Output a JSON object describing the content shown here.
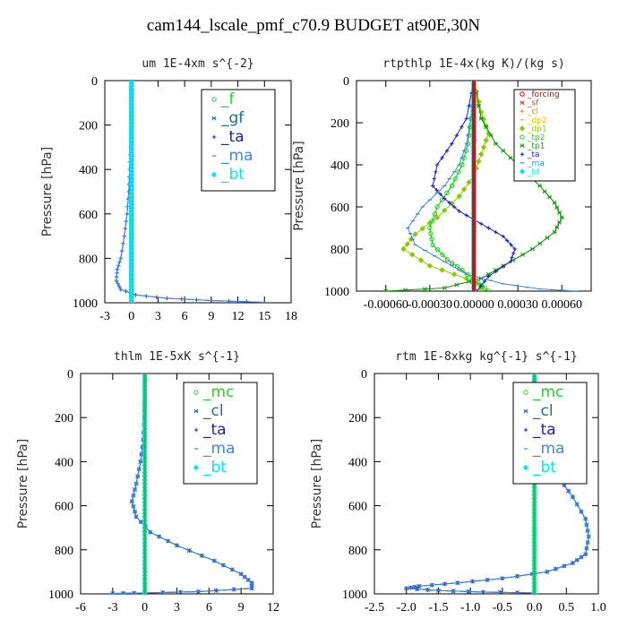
{
  "title": "cam144_lscale_pmf_c70.9  BUDGET at90E,30N",
  "chart_data": [
    {
      "type": "line",
      "title": "um  1E-4xm s^{-2}",
      "ylabel": "Pressure [hPa]",
      "xlim": [
        -3,
        18
      ],
      "ylim": [
        1000,
        0
      ],
      "xticks": [
        "-3",
        "0",
        "3",
        "6",
        "9",
        "12",
        "15",
        "18"
      ],
      "xtick_values": [
        -3,
        0,
        3,
        6,
        9,
        12,
        15,
        18
      ],
      "yticks": [
        "0",
        "200",
        "400",
        "600",
        "800",
        "1000"
      ],
      "legend_position": "top-right",
      "legend_size": "big",
      "series": [
        {
          "name": "_f",
          "color": "#33cc33",
          "marker": "circle",
          "width": 1.2,
          "x": [
            0,
            0,
            0,
            0,
            0,
            0,
            0,
            0,
            0,
            0,
            0
          ],
          "y": [
            0,
            100,
            200,
            300,
            400,
            500,
            600,
            700,
            800,
            900,
            1000
          ]
        },
        {
          "name": "_gf",
          "color": "#1c6ea4",
          "marker": "star",
          "width": 1,
          "x": [
            0,
            0,
            0,
            0,
            0,
            0,
            0,
            0,
            0,
            0,
            0
          ],
          "y": [
            0,
            100,
            200,
            300,
            400,
            500,
            600,
            700,
            800,
            900,
            1000
          ]
        },
        {
          "name": "_ta",
          "color": "#1e1ecc",
          "marker": "plus",
          "width": 1,
          "x": [
            0,
            0,
            -0.05,
            -0.1,
            -0.2,
            -0.3,
            -0.5,
            -0.8,
            -1.2,
            -1.6,
            -1.7,
            -1.2,
            0.5,
            4,
            9,
            15
          ],
          "y": [
            0,
            100,
            200,
            300,
            400,
            500,
            600,
            700,
            800,
            850,
            900,
            940,
            965,
            980,
            990,
            998
          ]
        },
        {
          "name": "_ma",
          "color": "#3a8ae0",
          "marker": "dash",
          "width": 1,
          "x": [
            0,
            0,
            -0.05,
            -0.1,
            -0.2,
            -0.3,
            -0.5,
            -0.8,
            -1.2,
            -1.6,
            -1.7,
            -1.2,
            0.5,
            4,
            9,
            15
          ],
          "y": [
            0,
            100,
            200,
            300,
            400,
            500,
            600,
            700,
            800,
            850,
            900,
            940,
            965,
            980,
            990,
            998
          ]
        },
        {
          "name": "_bt",
          "color": "#00e5ff",
          "marker": "diamond",
          "width": 1.2,
          "x": [
            0,
            0,
            0,
            0,
            0,
            0,
            0,
            0,
            0,
            0,
            0
          ],
          "y": [
            0,
            100,
            200,
            300,
            400,
            500,
            600,
            700,
            800,
            900,
            1000
          ]
        }
      ]
    },
    {
      "type": "line",
      "title": "rtpthlp  1E-4x(kg K)/(kg s)",
      "ylabel": "Pressure [hPa]",
      "xlim": [
        -0.0008,
        0.0008
      ],
      "ylim": [
        1000,
        0
      ],
      "xticks": [
        "-0.00060",
        "-0.00030",
        "0.00000",
        "0.00030",
        "0.00060"
      ],
      "xtick_values": [
        -0.0006,
        -0.0003,
        0.0,
        0.0003,
        0.0006
      ],
      "yticks": [
        "0",
        "200",
        "400",
        "600",
        "800",
        "1000"
      ],
      "legend_position": "top-right",
      "legend_size": "small",
      "series": [
        {
          "name": "_forcing",
          "color": "#d00000",
          "marker": "circle",
          "width": 1.2,
          "x": [
            0,
            0,
            0,
            0,
            0,
            0,
            0,
            0,
            0,
            0,
            0
          ],
          "y": [
            0,
            100,
            200,
            300,
            400,
            500,
            600,
            700,
            800,
            900,
            1000
          ]
        },
        {
          "name": "_sf",
          "color": "#e83030",
          "marker": "star",
          "width": 1,
          "x": [
            0,
            0,
            0,
            0,
            0,
            0,
            0,
            0,
            0,
            0,
            0
          ],
          "y": [
            0,
            100,
            200,
            300,
            400,
            500,
            600,
            700,
            800,
            900,
            1000
          ]
        },
        {
          "name": "_cl",
          "color": "#f08000",
          "marker": "plus",
          "width": 1,
          "x": [
            0,
            0,
            0,
            0,
            0,
            0,
            0,
            0,
            0,
            0,
            0
          ],
          "y": [
            0,
            100,
            200,
            300,
            400,
            500,
            600,
            700,
            800,
            900,
            1000
          ]
        },
        {
          "name": "_dp2",
          "color": "#e8c000",
          "marker": "dash",
          "width": 1,
          "x": [
            0,
            0,
            0,
            0,
            0,
            0,
            0,
            0,
            0,
            0,
            0
          ],
          "y": [
            0,
            100,
            200,
            300,
            400,
            500,
            600,
            700,
            800,
            900,
            1000
          ]
        },
        {
          "name": "_dp1",
          "color": "#88cc00",
          "marker": "diamond",
          "width": 1,
          "x": [
            0,
            5e-05,
            0.0001,
            5e-05,
            0,
            -0.0001,
            -0.00025,
            -0.0004,
            -0.00048,
            -0.0003,
            -5e-05,
            5e-05,
            5e-05
          ],
          "y": [
            0,
            150,
            250,
            350,
            450,
            550,
            650,
            730,
            800,
            880,
            940,
            975,
            1000
          ]
        },
        {
          "name": "_tp2",
          "color": "#22cc22",
          "marker": "circle",
          "width": 1.1,
          "x": [
            0,
            -2e-05,
            -4e-05,
            -8e-05,
            -0.00015,
            -0.00025,
            -0.0003,
            -0.00028,
            -0.00018,
            -8e-05,
            3e-05,
            0.0001
          ],
          "y": [
            0,
            180,
            300,
            400,
            500,
            600,
            700,
            780,
            850,
            900,
            960,
            1000
          ]
        },
        {
          "name": "_tp1",
          "color": "#119911",
          "marker": "star",
          "width": 1.1,
          "x": [
            0,
            5e-05,
            0.00015,
            0.0003,
            0.00045,
            0.00055,
            0.0006,
            0.00055,
            0.0004,
            0.0002,
            5e-05,
            -0.0002,
            -0.0006
          ],
          "y": [
            0,
            180,
            300,
            400,
            500,
            580,
            650,
            720,
            800,
            880,
            940,
            985,
            1000
          ]
        },
        {
          "name": "_ta",
          "color": "#1e1ecc",
          "marker": "plus",
          "width": 1,
          "x": [
            0,
            -5e-05,
            -0.00015,
            -0.00025,
            -0.00028,
            -0.0002,
            -0.0001,
            5e-05,
            0.0002,
            0.00028,
            0.00025,
            0.0001,
            2e-05
          ],
          "y": [
            0,
            180,
            300,
            400,
            500,
            560,
            620,
            680,
            740,
            800,
            860,
            930,
            1000
          ]
        },
        {
          "name": "_ma",
          "color": "#3a8ae0",
          "marker": "dash",
          "width": 1,
          "x": [
            0,
            -2e-05,
            -5e-05,
            -0.0001,
            -0.0002,
            -0.00035,
            -0.00045,
            -0.0004,
            -0.0002,
            -5e-05,
            0.0002,
            0.00045,
            0.0007
          ],
          "y": [
            0,
            180,
            300,
            400,
            500,
            600,
            700,
            780,
            860,
            920,
            965,
            990,
            1000
          ]
        },
        {
          "name": "_bt",
          "color": "#00e5ff",
          "marker": "diamond",
          "width": 1,
          "x": [
            0,
            0,
            0,
            0,
            0,
            0,
            0,
            0,
            0,
            0,
            0
          ],
          "y": [
            0,
            100,
            200,
            300,
            400,
            500,
            600,
            700,
            800,
            900,
            1000
          ]
        }
      ]
    },
    {
      "type": "line",
      "title": "thlm  1E-5xK s^{-1}",
      "ylabel": "Pressure [hPa]",
      "xlim": [
        -6,
        12
      ],
      "ylim": [
        1000,
        0
      ],
      "xticks": [
        "-6",
        "-3",
        "0",
        "3",
        "6",
        "9",
        "12"
      ],
      "xtick_values": [
        -6,
        -3,
        0,
        3,
        6,
        9,
        12
      ],
      "yticks": [
        "0",
        "200",
        "400",
        "600",
        "800",
        "1000"
      ],
      "legend_position": "top-right",
      "legend_size": "big",
      "series": [
        {
          "name": "_mc",
          "color": "#33cc33",
          "marker": "circle",
          "width": 1.2,
          "x": [
            0,
            0,
            0,
            0,
            0,
            0,
            0,
            0,
            0,
            0,
            0
          ],
          "y": [
            0,
            100,
            200,
            300,
            400,
            500,
            600,
            700,
            800,
            900,
            1000
          ]
        },
        {
          "name": "_cl",
          "color": "#1c6ea4",
          "marker": "star",
          "width": 1,
          "x": [
            0,
            0,
            -0.05,
            -0.15,
            -0.4,
            -0.8,
            -1.2,
            -0.8,
            0.5,
            3,
            6.5,
            9,
            10,
            10,
            5,
            0,
            -3
          ],
          "y": [
            0,
            100,
            200,
            300,
            400,
            500,
            580,
            650,
            720,
            780,
            850,
            910,
            950,
            975,
            990,
            996,
            998
          ]
        },
        {
          "name": "_ta",
          "color": "#1e1ecc",
          "marker": "plus",
          "width": 1,
          "x": [
            0,
            0,
            -0.05,
            -0.15,
            -0.4,
            -0.8,
            -1.2,
            -0.8,
            0.5,
            3,
            6.5,
            9,
            10,
            10,
            5,
            0,
            -3
          ],
          "y": [
            0,
            100,
            200,
            300,
            400,
            500,
            580,
            650,
            720,
            780,
            850,
            910,
            950,
            975,
            990,
            996,
            998
          ]
        },
        {
          "name": "_ma",
          "color": "#3a8ae0",
          "marker": "dash",
          "width": 1,
          "x": [
            0,
            0,
            -0.05,
            -0.15,
            -0.4,
            -0.8,
            -1.2,
            -0.8,
            0.5,
            3,
            6.5,
            9,
            10,
            10,
            5,
            0,
            -3
          ],
          "y": [
            0,
            100,
            200,
            300,
            400,
            500,
            580,
            650,
            720,
            780,
            850,
            910,
            950,
            975,
            990,
            996,
            998
          ]
        },
        {
          "name": "_bt",
          "color": "#00e5ff",
          "marker": "diamond",
          "width": 1.2,
          "x": [
            0,
            0,
            0,
            0,
            0,
            0,
            0,
            0,
            0,
            0,
            0
          ],
          "y": [
            0,
            100,
            200,
            300,
            400,
            500,
            600,
            700,
            800,
            900,
            1000
          ]
        }
      ]
    },
    {
      "type": "line",
      "title": "rtm  1E-8xkg kg^{-1} s^{-1}",
      "ylabel": "Pressure [hPa]",
      "xlim": [
        -2.5,
        1.0
      ],
      "ylim": [
        1000,
        0
      ],
      "xticks": [
        "-2.5",
        "-2.0",
        "-1.5",
        "-1.0",
        "-0.5",
        "0.0",
        "0.5",
        "1.0"
      ],
      "xtick_values": [
        -2.5,
        -2.0,
        -1.5,
        -1.0,
        -0.5,
        0.0,
        0.5,
        1.0
      ],
      "yticks": [
        "0",
        "200",
        "400",
        "600",
        "800",
        "1000"
      ],
      "legend_position": "top-right",
      "legend_size": "big",
      "series": [
        {
          "name": "_mc",
          "color": "#33cc33",
          "marker": "circle",
          "width": 1.2,
          "x": [
            0,
            0,
            0,
            0,
            0,
            0,
            0,
            0,
            0,
            0,
            0
          ],
          "y": [
            0,
            100,
            200,
            300,
            400,
            500,
            600,
            700,
            800,
            900,
            1000
          ]
        },
        {
          "name": "_cl",
          "color": "#1c6ea4",
          "marker": "star",
          "width": 1,
          "x": [
            0,
            0,
            0.05,
            0.1,
            0.15,
            0.2,
            0.4,
            0.6,
            0.8,
            0.85,
            0.8,
            0.6,
            0.2,
            -0.5,
            -1.2,
            -1.8,
            -2.0,
            -1.5,
            -0.8,
            0
          ],
          "y": [
            0,
            100,
            180,
            240,
            300,
            380,
            480,
            560,
            660,
            740,
            820,
            860,
            900,
            930,
            950,
            965,
            975,
            985,
            992,
            996
          ]
        },
        {
          "name": "_ta",
          "color": "#1e1ecc",
          "marker": "plus",
          "width": 1,
          "x": [
            0,
            0,
            0.05,
            0.1,
            0.15,
            0.2,
            0.4,
            0.6,
            0.8,
            0.85,
            0.8,
            0.6,
            0.2,
            -0.5,
            -1.2,
            -1.8,
            -2.0,
            -1.5,
            -0.8,
            0
          ],
          "y": [
            0,
            100,
            180,
            240,
            300,
            380,
            480,
            560,
            660,
            740,
            820,
            860,
            900,
            930,
            950,
            965,
            975,
            985,
            992,
            996
          ]
        },
        {
          "name": "_ma",
          "color": "#3a8ae0",
          "marker": "dash",
          "width": 1,
          "x": [
            0,
            0,
            0.05,
            0.1,
            0.15,
            0.2,
            0.4,
            0.6,
            0.8,
            0.85,
            0.8,
            0.6,
            0.2,
            -0.5,
            -1.2,
            -1.8,
            -2.0,
            -1.5,
            -0.8,
            0
          ],
          "y": [
            0,
            100,
            180,
            240,
            300,
            380,
            480,
            560,
            660,
            740,
            820,
            860,
            900,
            930,
            950,
            965,
            975,
            985,
            992,
            996
          ]
        },
        {
          "name": "_bt",
          "color": "#00e5ff",
          "marker": "diamond",
          "width": 1.2,
          "x": [
            0,
            0,
            0,
            0,
            0,
            0,
            0,
            0,
            0,
            0,
            0
          ],
          "y": [
            0,
            100,
            200,
            300,
            400,
            500,
            600,
            700,
            800,
            900,
            1000
          ]
        }
      ]
    }
  ]
}
